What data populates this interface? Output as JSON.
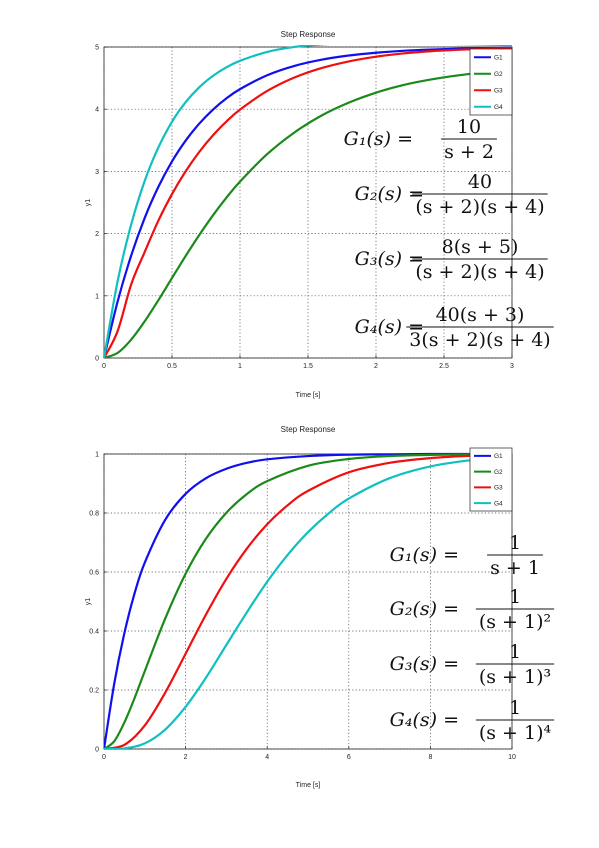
{
  "chart_data": [
    {
      "type": "line",
      "title": "Step Response",
      "xlabel": "Time [s]",
      "ylabel": "y1",
      "xlim": [
        0,
        3
      ],
      "ylim": [
        0,
        5
      ],
      "grid": true,
      "legend_position": "top-right",
      "x_ticks": [
        "0",
        "0.5",
        "1",
        "1.5",
        "2",
        "2.5",
        "3"
      ],
      "y_ticks": [
        "0",
        "1",
        "2",
        "3",
        "4",
        "5"
      ],
      "series": [
        {
          "name": "G1",
          "color": "#1010ee",
          "x": [
            0,
            0.1,
            0.2,
            0.3,
            0.4,
            0.5,
            0.6,
            0.7,
            0.8,
            0.9,
            1.0,
            1.2,
            1.4,
            1.6,
            1.8,
            2.0,
            2.2,
            2.4,
            2.6,
            2.8,
            3.0
          ],
          "y": [
            0,
            0.906,
            1.648,
            2.256,
            2.753,
            3.161,
            3.494,
            3.767,
            3.991,
            4.174,
            4.323,
            4.546,
            4.696,
            4.796,
            4.863,
            4.908,
            4.939,
            4.959,
            4.972,
            4.982,
            4.988
          ]
        },
        {
          "name": "G2",
          "color": "#1a8a1a",
          "x": [
            0,
            0.1,
            0.2,
            0.3,
            0.4,
            0.5,
            0.6,
            0.7,
            0.8,
            0.9,
            1.0,
            1.2,
            1.4,
            1.6,
            1.8,
            2.0,
            2.2,
            2.4,
            2.6,
            2.8,
            3.0
          ],
          "y": [
            0,
            0.082,
            0.296,
            0.592,
            0.93,
            1.286,
            1.639,
            1.976,
            2.29,
            2.577,
            2.836,
            3.278,
            3.626,
            3.899,
            4.106,
            4.266,
            4.388,
            4.476,
            4.543,
            4.593,
            4.63
          ]
        },
        {
          "name": "G3",
          "color": "#ee1010",
          "x": [
            0,
            0.1,
            0.2,
            0.3,
            0.4,
            0.5,
            0.6,
            0.7,
            0.8,
            0.9,
            1.0,
            1.2,
            1.4,
            1.6,
            1.8,
            2.0,
            2.2,
            2.4,
            2.6,
            2.8,
            3.0
          ],
          "y": [
            0,
            0.431,
            1.184,
            1.708,
            2.21,
            2.636,
            3.0,
            3.312,
            3.577,
            3.802,
            3.993,
            4.293,
            4.509,
            4.661,
            4.768,
            4.844,
            4.897,
            4.932,
            4.955,
            4.97,
            4.98
          ]
        },
        {
          "name": "G4",
          "color": "#10c0c0",
          "x": [
            0,
            0.1,
            0.2,
            0.3,
            0.4,
            0.5,
            0.6,
            0.7,
            0.8,
            0.9,
            1.0,
            1.2,
            1.4,
            1.6,
            1.8,
            2.0,
            2.2,
            2.4,
            2.6,
            2.8,
            3.0
          ],
          "y": [
            0,
            1.232,
            2.148,
            2.852,
            3.387,
            3.798,
            4.112,
            4.352,
            4.534,
            4.673,
            4.778,
            4.921,
            5.001,
            5.042,
            5.061,
            5.067,
            5.064,
            5.057,
            5.048,
            5.039,
            5.031
          ]
        }
      ],
      "formulas": [
        {
          "lhs": "G₁(s) =",
          "num": "10",
          "den": "s + 2"
        },
        {
          "lhs": "G₂(s) =",
          "num": "40",
          "den": "(s + 2)(s + 4)"
        },
        {
          "lhs": "G₃(s) =",
          "num": "8(s + 5)",
          "den": "(s + 2)(s + 4)"
        },
        {
          "lhs": "G₄(s) =",
          "num": "40(s + 3)",
          "den": "3(s + 2)(s + 4)"
        }
      ]
    },
    {
      "type": "line",
      "title": "Step Response",
      "xlabel": "Time [s]",
      "ylabel": "y1",
      "xlim": [
        0,
        10
      ],
      "ylim": [
        0,
        1
      ],
      "grid": true,
      "legend_position": "top-right",
      "x_ticks": [
        "0",
        "2",
        "4",
        "6",
        "8",
        "10"
      ],
      "y_ticks": [
        "0",
        "0.2",
        "0.4",
        "0.6",
        "0.8",
        "1"
      ],
      "series": [
        {
          "name": "G1",
          "color": "#1010ee",
          "x": [
            0,
            0.25,
            0.5,
            0.75,
            1,
            1.5,
            2,
            2.5,
            3,
            3.5,
            4,
            5,
            6,
            7,
            8,
            9,
            10
          ],
          "y": [
            0,
            0.221,
            0.393,
            0.528,
            0.632,
            0.777,
            0.865,
            0.918,
            0.95,
            0.97,
            0.982,
            0.993,
            0.998,
            0.999,
            1.0,
            1.0,
            1.0
          ]
        },
        {
          "name": "G2",
          "color": "#1a8a1a",
          "x": [
            0,
            0.25,
            0.5,
            0.75,
            1,
            1.5,
            2,
            2.5,
            3,
            3.5,
            4,
            5,
            6,
            7,
            8,
            9,
            10
          ],
          "y": [
            0,
            0.026,
            0.09,
            0.173,
            0.264,
            0.442,
            0.594,
            0.713,
            0.801,
            0.864,
            0.908,
            0.96,
            0.983,
            0.993,
            0.997,
            0.999,
            1.0
          ]
        },
        {
          "name": "G3",
          "color": "#ee1010",
          "x": [
            0,
            0.5,
            1,
            1.5,
            2,
            2.5,
            3,
            3.5,
            4,
            4.5,
            5,
            6,
            7,
            8,
            9,
            10
          ],
          "y": [
            0,
            0.014,
            0.08,
            0.191,
            0.323,
            0.456,
            0.577,
            0.679,
            0.762,
            0.826,
            0.875,
            0.938,
            0.97,
            0.986,
            0.994,
            0.997
          ]
        },
        {
          "name": "G4",
          "color": "#10c0c0",
          "x": [
            0,
            0.5,
            1,
            1.5,
            2,
            2.5,
            3,
            3.5,
            4,
            4.5,
            5,
            5.5,
            6,
            7,
            8,
            9,
            10
          ],
          "y": [
            0,
            0.002,
            0.019,
            0.066,
            0.143,
            0.242,
            0.353,
            0.463,
            0.567,
            0.658,
            0.735,
            0.798,
            0.849,
            0.918,
            0.958,
            0.979,
            0.99
          ]
        }
      ],
      "formulas": [
        {
          "lhs": "G₁(s) =",
          "num": "1",
          "den": "s + 1"
        },
        {
          "lhs": "G₂(s) =",
          "num": "1",
          "den": "(s + 1)²"
        },
        {
          "lhs": "G₃(s) =",
          "num": "1",
          "den": "(s + 1)³"
        },
        {
          "lhs": "G₄(s) =",
          "num": "1",
          "den": "(s + 1)⁴"
        }
      ]
    }
  ]
}
